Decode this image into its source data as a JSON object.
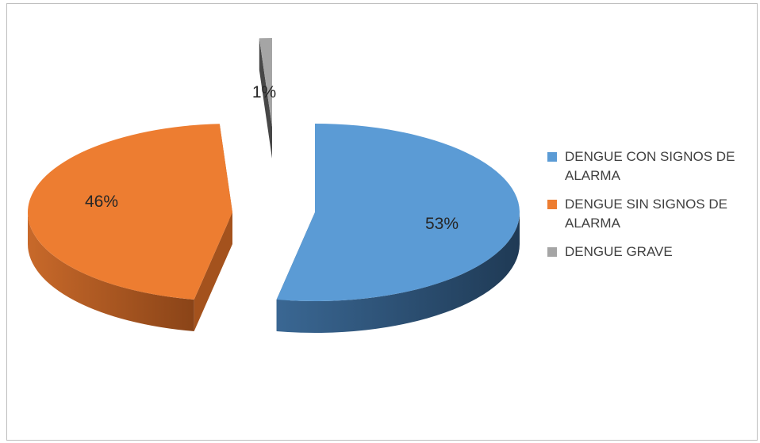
{
  "chart_data": {
    "type": "pie",
    "title": "",
    "categories": [
      "DENGUE CON SIGNOS DE ALARMA",
      "DENGUE SIN SIGNOS DE ALARMA",
      "DENGUE GRAVE"
    ],
    "values": [
      53,
      46,
      1
    ],
    "data_labels": [
      "53%",
      "46%",
      "1%"
    ],
    "colors": [
      "#5b9bd5",
      "#ed7d31",
      "#a5a5a5"
    ],
    "side_colors": [
      "#2e5478",
      "#a4521d",
      "#474747"
    ],
    "exploded": true,
    "three_d": true,
    "legend_position": "right"
  }
}
